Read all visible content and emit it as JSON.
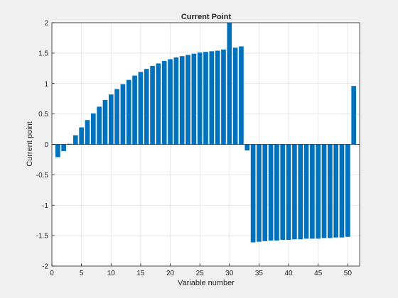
{
  "chart_data": {
    "type": "bar",
    "title": "Current Point",
    "xlabel": "Variable number",
    "ylabel": "Current point",
    "xlim": [
      0,
      52
    ],
    "ylim": [
      -2,
      2
    ],
    "xticks": [
      0,
      5,
      10,
      15,
      20,
      25,
      30,
      35,
      40,
      45,
      50
    ],
    "yticks": [
      -2,
      -1.5,
      -1,
      -0.5,
      0,
      0.5,
      1,
      1.5,
      2
    ],
    "grid": true,
    "bar_color": "#0072BD",
    "x": [
      1,
      2,
      3,
      4,
      5,
      6,
      7,
      8,
      9,
      10,
      11,
      12,
      13,
      14,
      15,
      16,
      17,
      18,
      19,
      20,
      21,
      22,
      23,
      24,
      25,
      26,
      27,
      28,
      29,
      30,
      31,
      32,
      33,
      34,
      35,
      36,
      37,
      38,
      39,
      40,
      41,
      42,
      43,
      44,
      45,
      46,
      47,
      48,
      49,
      50,
      51
    ],
    "values": [
      -0.21,
      -0.11,
      0.01,
      0.15,
      0.28,
      0.4,
      0.51,
      0.62,
      0.73,
      0.82,
      0.91,
      0.99,
      1.06,
      1.13,
      1.19,
      1.24,
      1.29,
      1.33,
      1.37,
      1.4,
      1.43,
      1.45,
      1.47,
      1.49,
      1.51,
      1.52,
      1.53,
      1.54,
      1.56,
      2.0,
      1.59,
      1.61,
      -0.1,
      -1.61,
      -1.6,
      -1.59,
      -1.58,
      -1.58,
      -1.57,
      -1.57,
      -1.56,
      -1.56,
      -1.55,
      -1.55,
      -1.55,
      -1.54,
      -1.54,
      -1.53,
      -1.53,
      -1.52,
      0.96
    ]
  }
}
